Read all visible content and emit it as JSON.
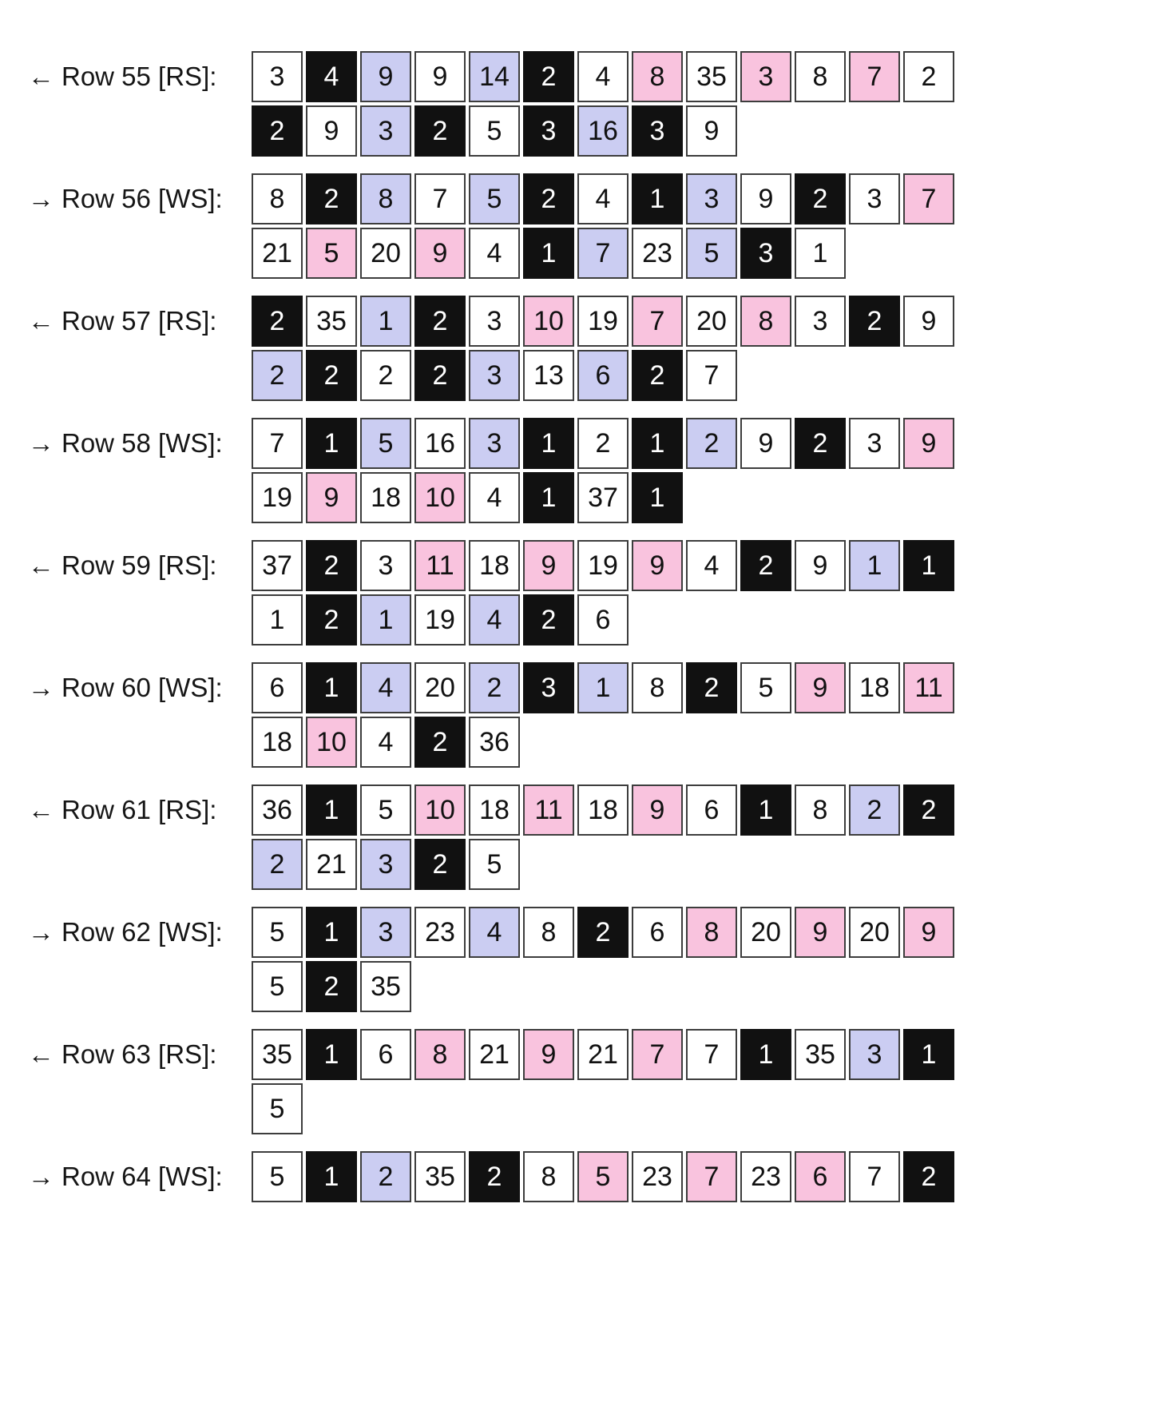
{
  "colors": {
    "white": "#ffffff",
    "black": "#111111",
    "lavender": "#cbcdf2",
    "pink": "#f9c3de",
    "cell_border": "#3d3d3d",
    "text_dark": "#111111",
    "text_light": "#ffffff"
  },
  "rows": [
    {
      "arrow": "←",
      "label": "Row 55 [RS]:",
      "cells": [
        {
          "value": "3",
          "color": "white"
        },
        {
          "value": "4",
          "color": "black"
        },
        {
          "value": "9",
          "color": "lavender"
        },
        {
          "value": "9",
          "color": "white"
        },
        {
          "value": "14",
          "color": "lavender"
        },
        {
          "value": "2",
          "color": "black"
        },
        {
          "value": "4",
          "color": "white"
        },
        {
          "value": "8",
          "color": "pink"
        },
        {
          "value": "35",
          "color": "white"
        },
        {
          "value": "3",
          "color": "pink"
        },
        {
          "value": "8",
          "color": "white"
        },
        {
          "value": "7",
          "color": "pink"
        },
        {
          "value": "2",
          "color": "white"
        },
        {
          "value": "2",
          "color": "black"
        },
        {
          "value": "9",
          "color": "white"
        },
        {
          "value": "3",
          "color": "lavender"
        },
        {
          "value": "2",
          "color": "black"
        },
        {
          "value": "5",
          "color": "white"
        },
        {
          "value": "3",
          "color": "black"
        },
        {
          "value": "16",
          "color": "lavender"
        },
        {
          "value": "3",
          "color": "black"
        },
        {
          "value": "9",
          "color": "white"
        }
      ]
    },
    {
      "arrow": "→",
      "label": "Row 56 [WS]:",
      "cells": [
        {
          "value": "8",
          "color": "white"
        },
        {
          "value": "2",
          "color": "black"
        },
        {
          "value": "8",
          "color": "lavender"
        },
        {
          "value": "7",
          "color": "white"
        },
        {
          "value": "5",
          "color": "lavender"
        },
        {
          "value": "2",
          "color": "black"
        },
        {
          "value": "4",
          "color": "white"
        },
        {
          "value": "1",
          "color": "black"
        },
        {
          "value": "3",
          "color": "lavender"
        },
        {
          "value": "9",
          "color": "white"
        },
        {
          "value": "2",
          "color": "black"
        },
        {
          "value": "3",
          "color": "white"
        },
        {
          "value": "7",
          "color": "pink"
        },
        {
          "value": "21",
          "color": "white"
        },
        {
          "value": "5",
          "color": "pink"
        },
        {
          "value": "20",
          "color": "white"
        },
        {
          "value": "9",
          "color": "pink"
        },
        {
          "value": "4",
          "color": "white"
        },
        {
          "value": "1",
          "color": "black"
        },
        {
          "value": "7",
          "color": "lavender"
        },
        {
          "value": "23",
          "color": "white"
        },
        {
          "value": "5",
          "color": "lavender"
        },
        {
          "value": "3",
          "color": "black"
        },
        {
          "value": "1",
          "color": "white"
        }
      ]
    },
    {
      "arrow": "←",
      "label": "Row 57 [RS]:",
      "cells": [
        {
          "value": "2",
          "color": "black"
        },
        {
          "value": "35",
          "color": "white"
        },
        {
          "value": "1",
          "color": "lavender"
        },
        {
          "value": "2",
          "color": "black"
        },
        {
          "value": "3",
          "color": "white"
        },
        {
          "value": "10",
          "color": "pink"
        },
        {
          "value": "19",
          "color": "white"
        },
        {
          "value": "7",
          "color": "pink"
        },
        {
          "value": "20",
          "color": "white"
        },
        {
          "value": "8",
          "color": "pink"
        },
        {
          "value": "3",
          "color": "white"
        },
        {
          "value": "2",
          "color": "black"
        },
        {
          "value": "9",
          "color": "white"
        },
        {
          "value": "2",
          "color": "lavender"
        },
        {
          "value": "2",
          "color": "black"
        },
        {
          "value": "2",
          "color": "white"
        },
        {
          "value": "2",
          "color": "black"
        },
        {
          "value": "3",
          "color": "lavender"
        },
        {
          "value": "13",
          "color": "white"
        },
        {
          "value": "6",
          "color": "lavender"
        },
        {
          "value": "2",
          "color": "black"
        },
        {
          "value": "7",
          "color": "white"
        }
      ]
    },
    {
      "arrow": "→",
      "label": "Row 58 [WS]:",
      "cells": [
        {
          "value": "7",
          "color": "white"
        },
        {
          "value": "1",
          "color": "black"
        },
        {
          "value": "5",
          "color": "lavender"
        },
        {
          "value": "16",
          "color": "white"
        },
        {
          "value": "3",
          "color": "lavender"
        },
        {
          "value": "1",
          "color": "black"
        },
        {
          "value": "2",
          "color": "white"
        },
        {
          "value": "1",
          "color": "black"
        },
        {
          "value": "2",
          "color": "lavender"
        },
        {
          "value": "9",
          "color": "white"
        },
        {
          "value": "2",
          "color": "black"
        },
        {
          "value": "3",
          "color": "white"
        },
        {
          "value": "9",
          "color": "pink"
        },
        {
          "value": "19",
          "color": "white"
        },
        {
          "value": "9",
          "color": "pink"
        },
        {
          "value": "18",
          "color": "white"
        },
        {
          "value": "10",
          "color": "pink"
        },
        {
          "value": "4",
          "color": "white"
        },
        {
          "value": "1",
          "color": "black"
        },
        {
          "value": "37",
          "color": "white"
        },
        {
          "value": "1",
          "color": "black"
        }
      ]
    },
    {
      "arrow": "←",
      "label": "Row 59 [RS]:",
      "cells": [
        {
          "value": "37",
          "color": "white"
        },
        {
          "value": "2",
          "color": "black"
        },
        {
          "value": "3",
          "color": "white"
        },
        {
          "value": "11",
          "color": "pink"
        },
        {
          "value": "18",
          "color": "white"
        },
        {
          "value": "9",
          "color": "pink"
        },
        {
          "value": "19",
          "color": "white"
        },
        {
          "value": "9",
          "color": "pink"
        },
        {
          "value": "4",
          "color": "white"
        },
        {
          "value": "2",
          "color": "black"
        },
        {
          "value": "9",
          "color": "white"
        },
        {
          "value": "1",
          "color": "lavender"
        },
        {
          "value": "1",
          "color": "black"
        },
        {
          "value": "1",
          "color": "white"
        },
        {
          "value": "2",
          "color": "black"
        },
        {
          "value": "1",
          "color": "lavender"
        },
        {
          "value": "19",
          "color": "white"
        },
        {
          "value": "4",
          "color": "lavender"
        },
        {
          "value": "2",
          "color": "black"
        },
        {
          "value": "6",
          "color": "white"
        }
      ]
    },
    {
      "arrow": "→",
      "label": "Row 60 [WS]:",
      "cells": [
        {
          "value": "6",
          "color": "white"
        },
        {
          "value": "1",
          "color": "black"
        },
        {
          "value": "4",
          "color": "lavender"
        },
        {
          "value": "20",
          "color": "white"
        },
        {
          "value": "2",
          "color": "lavender"
        },
        {
          "value": "3",
          "color": "black"
        },
        {
          "value": "1",
          "color": "lavender"
        },
        {
          "value": "8",
          "color": "white"
        },
        {
          "value": "2",
          "color": "black"
        },
        {
          "value": "5",
          "color": "white"
        },
        {
          "value": "9",
          "color": "pink"
        },
        {
          "value": "18",
          "color": "white"
        },
        {
          "value": "11",
          "color": "pink"
        },
        {
          "value": "18",
          "color": "white"
        },
        {
          "value": "10",
          "color": "pink"
        },
        {
          "value": "4",
          "color": "white"
        },
        {
          "value": "2",
          "color": "black"
        },
        {
          "value": "36",
          "color": "white"
        }
      ]
    },
    {
      "arrow": "←",
      "label": "Row 61 [RS]:",
      "cells": [
        {
          "value": "36",
          "color": "white"
        },
        {
          "value": "1",
          "color": "black"
        },
        {
          "value": "5",
          "color": "white"
        },
        {
          "value": "10",
          "color": "pink"
        },
        {
          "value": "18",
          "color": "white"
        },
        {
          "value": "11",
          "color": "pink"
        },
        {
          "value": "18",
          "color": "white"
        },
        {
          "value": "9",
          "color": "pink"
        },
        {
          "value": "6",
          "color": "white"
        },
        {
          "value": "1",
          "color": "black"
        },
        {
          "value": "8",
          "color": "white"
        },
        {
          "value": "2",
          "color": "lavender"
        },
        {
          "value": "2",
          "color": "black"
        },
        {
          "value": "2",
          "color": "lavender"
        },
        {
          "value": "21",
          "color": "white"
        },
        {
          "value": "3",
          "color": "lavender"
        },
        {
          "value": "2",
          "color": "black"
        },
        {
          "value": "5",
          "color": "white"
        }
      ]
    },
    {
      "arrow": "→",
      "label": "Row 62 [WS]:",
      "cells": [
        {
          "value": "5",
          "color": "white"
        },
        {
          "value": "1",
          "color": "black"
        },
        {
          "value": "3",
          "color": "lavender"
        },
        {
          "value": "23",
          "color": "white"
        },
        {
          "value": "4",
          "color": "lavender"
        },
        {
          "value": "8",
          "color": "white"
        },
        {
          "value": "2",
          "color": "black"
        },
        {
          "value": "6",
          "color": "white"
        },
        {
          "value": "8",
          "color": "pink"
        },
        {
          "value": "20",
          "color": "white"
        },
        {
          "value": "9",
          "color": "pink"
        },
        {
          "value": "20",
          "color": "white"
        },
        {
          "value": "9",
          "color": "pink"
        },
        {
          "value": "5",
          "color": "white"
        },
        {
          "value": "2",
          "color": "black"
        },
        {
          "value": "35",
          "color": "white"
        }
      ]
    },
    {
      "arrow": "←",
      "label": "Row 63 [RS]:",
      "cells": [
        {
          "value": "35",
          "color": "white"
        },
        {
          "value": "1",
          "color": "black"
        },
        {
          "value": "6",
          "color": "white"
        },
        {
          "value": "8",
          "color": "pink"
        },
        {
          "value": "21",
          "color": "white"
        },
        {
          "value": "9",
          "color": "pink"
        },
        {
          "value": "21",
          "color": "white"
        },
        {
          "value": "7",
          "color": "pink"
        },
        {
          "value": "7",
          "color": "white"
        },
        {
          "value": "1",
          "color": "black"
        },
        {
          "value": "35",
          "color": "white"
        },
        {
          "value": "3",
          "color": "lavender"
        },
        {
          "value": "1",
          "color": "black"
        },
        {
          "value": "5",
          "color": "white"
        }
      ]
    },
    {
      "arrow": "→",
      "label": "Row 64 [WS]:",
      "cells": [
        {
          "value": "5",
          "color": "white"
        },
        {
          "value": "1",
          "color": "black"
        },
        {
          "value": "2",
          "color": "lavender"
        },
        {
          "value": "35",
          "color": "white"
        },
        {
          "value": "2",
          "color": "black"
        },
        {
          "value": "8",
          "color": "white"
        },
        {
          "value": "5",
          "color": "pink"
        },
        {
          "value": "23",
          "color": "white"
        },
        {
          "value": "7",
          "color": "pink"
        },
        {
          "value": "23",
          "color": "white"
        },
        {
          "value": "6",
          "color": "pink"
        },
        {
          "value": "7",
          "color": "white"
        },
        {
          "value": "2",
          "color": "black"
        }
      ]
    }
  ]
}
